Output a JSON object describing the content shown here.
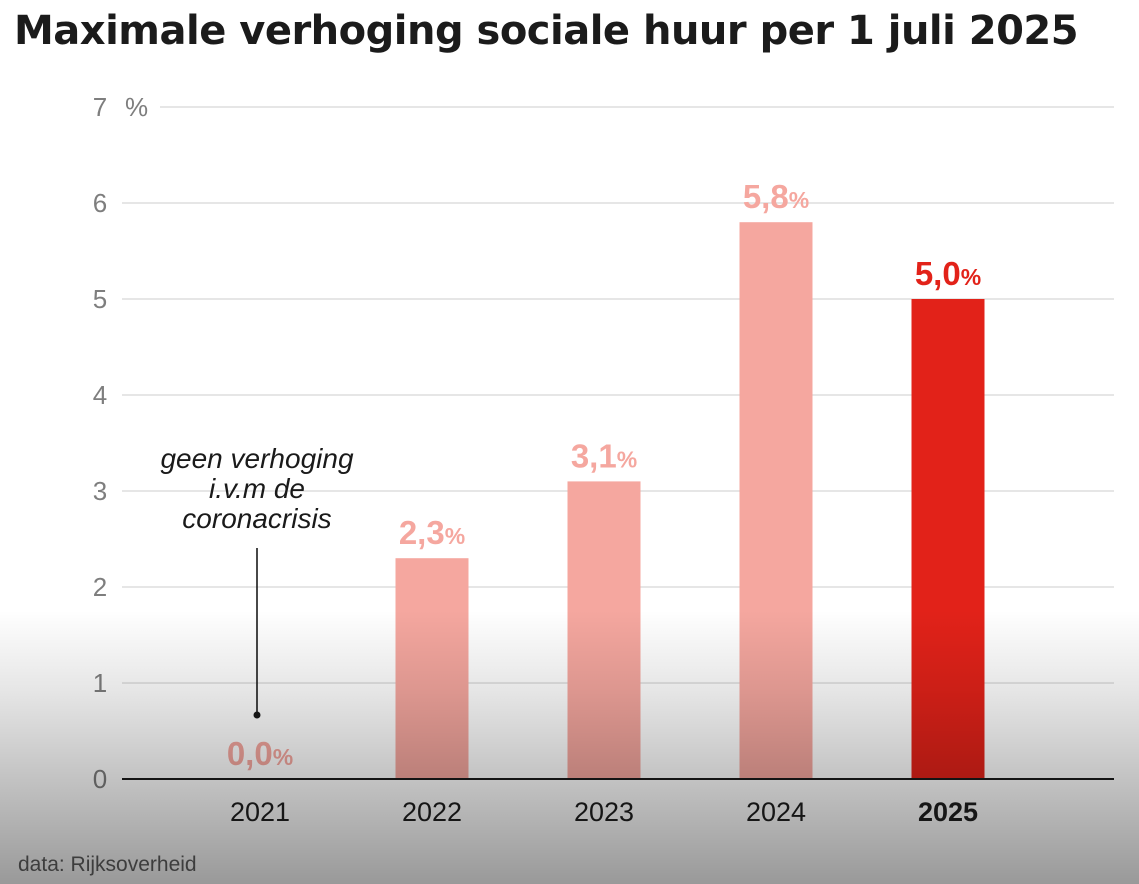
{
  "chart_data": {
    "type": "bar",
    "title": "Maximale verhoging sociale huur per 1 juli 2025",
    "categories": [
      "2021",
      "2022",
      "2023",
      "2024",
      "2025"
    ],
    "values": [
      0.0,
      2.3,
      3.1,
      5.8,
      5.0
    ],
    "value_labels": [
      "0,0",
      "2,3",
      "3,1",
      "5,8",
      "5,0"
    ],
    "value_suffix": "%",
    "highlight_category": "2025",
    "ylim": [
      0,
      7
    ],
    "yticks": [
      0,
      1,
      2,
      3,
      4,
      5,
      6,
      7
    ],
    "y_unit_label": "%",
    "grid": true,
    "legend": "none",
    "colors": {
      "bar": "#f5a79f",
      "highlight": "#e22219",
      "axis": "#1a1a1a",
      "grid": "#d7d7d7",
      "tick": "#7e7e7e"
    },
    "annotation": {
      "category": "2021",
      "lines": [
        "geen verhoging",
        "i.v.m de",
        "coronacrisis"
      ]
    }
  },
  "source": "data: Rijksoverheid"
}
